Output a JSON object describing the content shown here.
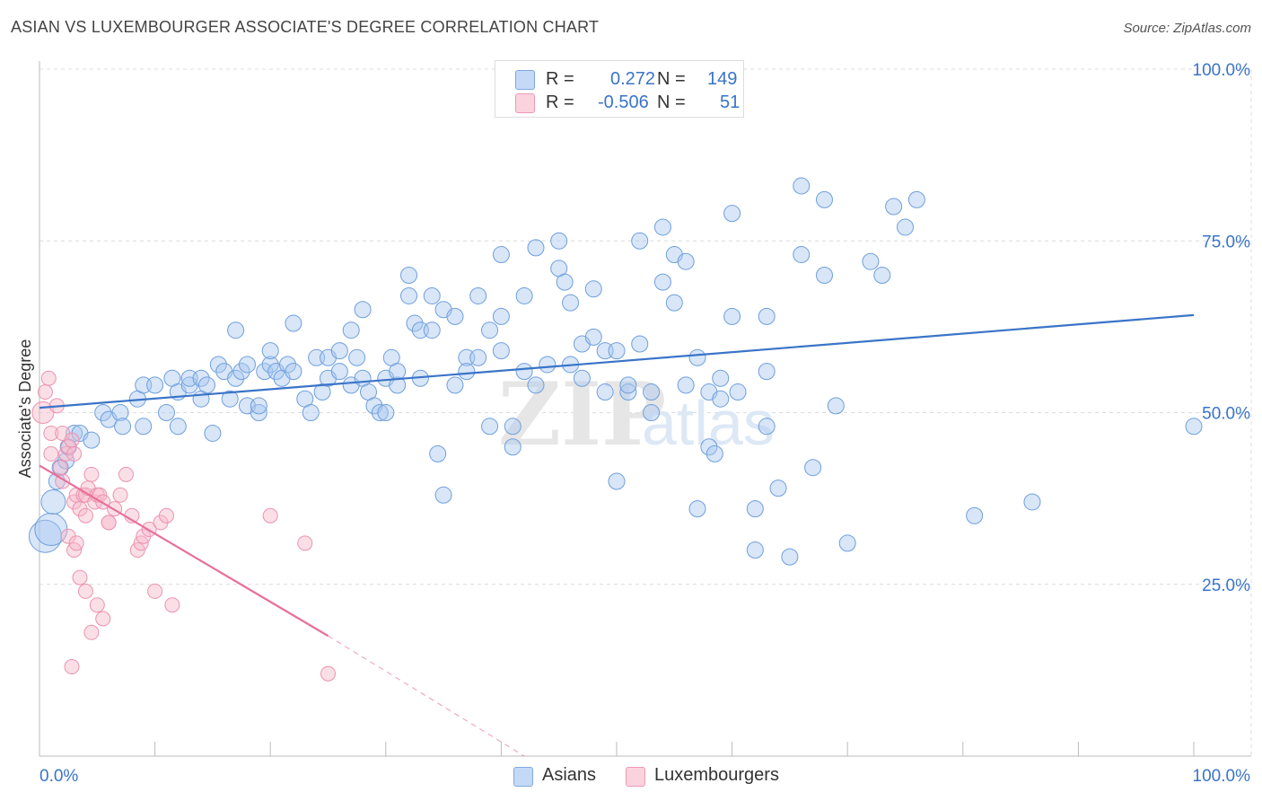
{
  "title": "ASIAN VS LUXEMBOURGER ASSOCIATE'S DEGREE CORRELATION CHART",
  "source": "Source: ZipAtlas.com",
  "watermark": "ZIPatlas",
  "legend": {
    "rows": [
      {
        "r_label": "R =",
        "r_value": "0.272",
        "n_label": "N =",
        "n_value": "149",
        "color": "#a8c8f0"
      },
      {
        "r_label": "R =",
        "r_value": "-0.506",
        "n_label": "N =",
        "n_value": "51",
        "color": "#f6b8ca"
      }
    ]
  },
  "bottom_legend": [
    {
      "label": "Asians",
      "color": "#a8c8f0"
    },
    {
      "label": "Luxembourgers",
      "color": "#f6b8ca"
    }
  ],
  "chart_data": {
    "type": "scatter",
    "title": "ASIAN VS LUXEMBOURGER ASSOCIATE'S DEGREE CORRELATION CHART",
    "xlabel": "",
    "ylabel": "Associate's Degree",
    "xlim": [
      0,
      100
    ],
    "ylim": [
      0,
      100
    ],
    "x_tick_labels": [
      "0.0%",
      "100.0%"
    ],
    "y_tick_labels": [
      "25.0%",
      "50.0%",
      "75.0%",
      "100.0%"
    ],
    "y_ticks": [
      25,
      50,
      75,
      100
    ],
    "grid": true,
    "colors": {
      "asians": "#3a74c8",
      "asians_fill": "#a8c8f0",
      "lux": "#e8709a",
      "lux_fill": "#f6b8ca",
      "tick_text": "#3a74c8"
    },
    "series": [
      {
        "name": "Asians",
        "r": 0.272,
        "n": 149,
        "trend": {
          "x0": 0,
          "y0": 50.7,
          "x1": 100,
          "y1": 64.2
        },
        "points": [
          [
            0.5,
            32,
            2
          ],
          [
            1,
            33,
            2
          ],
          [
            1.2,
            37,
            1.5
          ],
          [
            1.5,
            40,
            1
          ],
          [
            1.8,
            42,
            1
          ],
          [
            2.3,
            43,
            1
          ],
          [
            2.5,
            45,
            1
          ],
          [
            3,
            47,
            1
          ],
          [
            3.5,
            47,
            1
          ],
          [
            4.5,
            46,
            1
          ],
          [
            5.5,
            50,
            1
          ],
          [
            6,
            49,
            1
          ],
          [
            7,
            50,
            1
          ],
          [
            7.2,
            48,
            1
          ],
          [
            9,
            48,
            1
          ],
          [
            8.5,
            52,
            1
          ],
          [
            9,
            54,
            1
          ],
          [
            10,
            54,
            1
          ],
          [
            11,
            50,
            1
          ],
          [
            11.5,
            55,
            1
          ],
          [
            12,
            48,
            1
          ],
          [
            12,
            53,
            1
          ],
          [
            13,
            54,
            1
          ],
          [
            13,
            55,
            1
          ],
          [
            14,
            52,
            1
          ],
          [
            14,
            55,
            1
          ],
          [
            14.5,
            54,
            1
          ],
          [
            15,
            47,
            1
          ],
          [
            15.5,
            57,
            1
          ],
          [
            16,
            56,
            1
          ],
          [
            17,
            55,
            1
          ],
          [
            16.5,
            52,
            1
          ],
          [
            17.5,
            56,
            1
          ],
          [
            17,
            62,
            1
          ],
          [
            18,
            51,
            1
          ],
          [
            18,
            57,
            1
          ],
          [
            19,
            50,
            1
          ],
          [
            19,
            51,
            1
          ],
          [
            19.5,
            56,
            1
          ],
          [
            20,
            57,
            1
          ],
          [
            20,
            59,
            1
          ],
          [
            20.5,
            56,
            1
          ],
          [
            21,
            55,
            1
          ],
          [
            21.5,
            57,
            1
          ],
          [
            22,
            56,
            1
          ],
          [
            22,
            63,
            1
          ],
          [
            23,
            52,
            1
          ],
          [
            23.5,
            50,
            1
          ],
          [
            24,
            58,
            1
          ],
          [
            24.5,
            53,
            1
          ],
          [
            25,
            55,
            1
          ],
          [
            25,
            58,
            1
          ],
          [
            26,
            56,
            1
          ],
          [
            26,
            59,
            1
          ],
          [
            27,
            54,
            1
          ],
          [
            27,
            62,
            1
          ],
          [
            27.5,
            58,
            1
          ],
          [
            28,
            55,
            1
          ],
          [
            28,
            65,
            1
          ],
          [
            28.5,
            53,
            1
          ],
          [
            29,
            51,
            1
          ],
          [
            29.5,
            50,
            1
          ],
          [
            30,
            50,
            1
          ],
          [
            30,
            55,
            1
          ],
          [
            30.5,
            58,
            1
          ],
          [
            31,
            54,
            1
          ],
          [
            31,
            56,
            1
          ],
          [
            32,
            70,
            1
          ],
          [
            32,
            67,
            1
          ],
          [
            32.5,
            63,
            1
          ],
          [
            33,
            62,
            1
          ],
          [
            33,
            55,
            1
          ],
          [
            34,
            67,
            1
          ],
          [
            34,
            62,
            1
          ],
          [
            34.5,
            44,
            1
          ],
          [
            35,
            65,
            1
          ],
          [
            35,
            38,
            1
          ],
          [
            36,
            54,
            1
          ],
          [
            36,
            64,
            1
          ],
          [
            37,
            58,
            1
          ],
          [
            37,
            56,
            1
          ],
          [
            38,
            58,
            1
          ],
          [
            38,
            67,
            1
          ],
          [
            39,
            62,
            1
          ],
          [
            39,
            48,
            1
          ],
          [
            40,
            73,
            1
          ],
          [
            40,
            64,
            1
          ],
          [
            40,
            59,
            1
          ],
          [
            41,
            48,
            1
          ],
          [
            41,
            45,
            1
          ],
          [
            42,
            67,
            1
          ],
          [
            42,
            56,
            1
          ],
          [
            43,
            74,
            1
          ],
          [
            43,
            54,
            1
          ],
          [
            44,
            57,
            1
          ],
          [
            45,
            75,
            1
          ],
          [
            45,
            71,
            1
          ],
          [
            45.5,
            69,
            1
          ],
          [
            46,
            66,
            1
          ],
          [
            46,
            57,
            1
          ],
          [
            47,
            60,
            1
          ],
          [
            47,
            55,
            1
          ],
          [
            48,
            61,
            1
          ],
          [
            48,
            68,
            1
          ],
          [
            49,
            59,
            1
          ],
          [
            49,
            53,
            1
          ],
          [
            50,
            59,
            1
          ],
          [
            50,
            40,
            1
          ],
          [
            51,
            53,
            1
          ],
          [
            51,
            54,
            1
          ],
          [
            52,
            75,
            1
          ],
          [
            52,
            60,
            1
          ],
          [
            53,
            50,
            1
          ],
          [
            53,
            53,
            1
          ],
          [
            54,
            77,
            1
          ],
          [
            54,
            69,
            1
          ],
          [
            55,
            66,
            1
          ],
          [
            55,
            73,
            1
          ],
          [
            56,
            72,
            1
          ],
          [
            56,
            54,
            1
          ],
          [
            57,
            58,
            1
          ],
          [
            57,
            36,
            1
          ],
          [
            58,
            53,
            1
          ],
          [
            58,
            45,
            1
          ],
          [
            58.5,
            44,
            1
          ],
          [
            59,
            52,
            1
          ],
          [
            59,
            55,
            1
          ],
          [
            60,
            79,
            1
          ],
          [
            60,
            64,
            1
          ],
          [
            60.5,
            53,
            1
          ],
          [
            62,
            36,
            1
          ],
          [
            62,
            30,
            1
          ],
          [
            63,
            48,
            1
          ],
          [
            63,
            64,
            1
          ],
          [
            63,
            56,
            1
          ],
          [
            64,
            39,
            1
          ],
          [
            65,
            29,
            1
          ],
          [
            66,
            83,
            1
          ],
          [
            66,
            73,
            1
          ],
          [
            67,
            42,
            1
          ],
          [
            68,
            81,
            1
          ],
          [
            68,
            70,
            1
          ],
          [
            69,
            51,
            1
          ],
          [
            70,
            31,
            1
          ],
          [
            72,
            72,
            1
          ],
          [
            73,
            70,
            1
          ],
          [
            74,
            80,
            1
          ],
          [
            75,
            77,
            1
          ],
          [
            76,
            81,
            1
          ],
          [
            81,
            35,
            1
          ],
          [
            86,
            37,
            1
          ],
          [
            100,
            48,
            1
          ]
        ]
      },
      {
        "name": "Luxembourgers",
        "r": -0.506,
        "n": 51,
        "trend": {
          "x0": 0,
          "y0": 42.3,
          "x1": 25,
          "y1": 17.5,
          "dash_to_x": 42,
          "dash_to_y": 0
        },
        "points": [
          [
            0.3,
            50,
            1.5
          ],
          [
            0.5,
            53,
            1
          ],
          [
            0.8,
            55,
            1
          ],
          [
            1,
            44,
            1
          ],
          [
            1,
            47,
            1
          ],
          [
            1.5,
            51,
            1
          ],
          [
            1.8,
            42,
            1
          ],
          [
            2,
            40,
            1
          ],
          [
            2,
            47,
            1
          ],
          [
            2.3,
            44,
            1
          ],
          [
            2.5,
            45,
            1
          ],
          [
            2.8,
            46,
            1
          ],
          [
            3,
            37,
            1
          ],
          [
            3,
            44,
            1
          ],
          [
            3.2,
            38,
            1
          ],
          [
            3.5,
            36,
            1
          ],
          [
            3.8,
            38,
            1
          ],
          [
            4,
            38,
            1
          ],
          [
            4.2,
            39,
            1
          ],
          [
            4.5,
            41,
            1
          ],
          [
            4.8,
            37,
            1
          ],
          [
            5,
            38,
            1
          ],
          [
            5.2,
            38,
            1
          ],
          [
            5.5,
            37,
            1
          ],
          [
            6,
            34,
            1
          ],
          [
            6.5,
            36,
            1
          ],
          [
            7,
            38,
            1
          ],
          [
            7.5,
            41,
            1
          ],
          [
            8,
            35,
            1
          ],
          [
            8.5,
            30,
            1
          ],
          [
            8.8,
            31,
            1
          ],
          [
            9,
            32,
            1
          ],
          [
            9.5,
            33,
            1
          ],
          [
            10,
            24,
            1
          ],
          [
            10.5,
            34,
            1
          ],
          [
            11,
            35,
            1
          ],
          [
            11.5,
            22,
            1
          ],
          [
            2.5,
            32,
            1
          ],
          [
            3.5,
            26,
            1
          ],
          [
            4,
            24,
            1
          ],
          [
            4.5,
            18,
            1
          ],
          [
            5,
            22,
            1
          ],
          [
            5.5,
            20,
            1
          ],
          [
            2.8,
            13,
            1
          ],
          [
            3,
            30,
            1
          ],
          [
            3.2,
            31,
            1
          ],
          [
            20,
            35,
            1
          ],
          [
            23,
            31,
            1
          ],
          [
            25,
            12,
            1
          ],
          [
            4,
            35,
            1
          ],
          [
            6,
            34,
            1
          ]
        ]
      }
    ]
  }
}
